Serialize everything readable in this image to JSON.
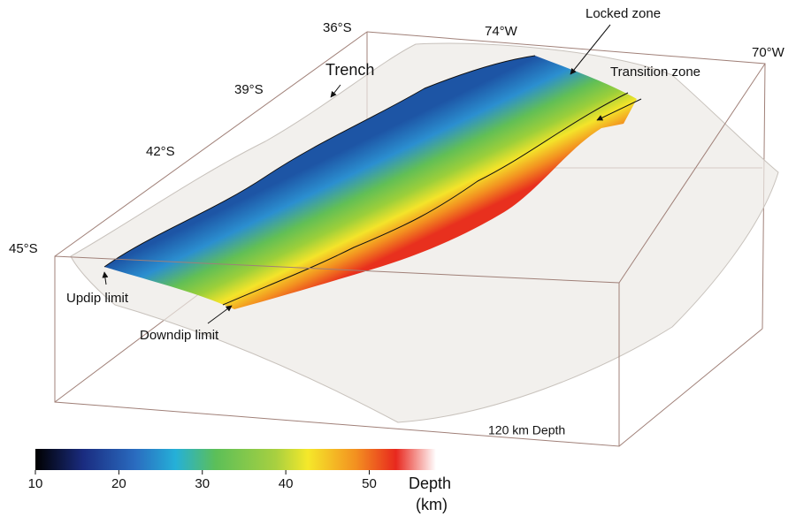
{
  "labels": {
    "lat": [
      "36°S",
      "39°S",
      "42°S",
      "45°S"
    ],
    "lon": [
      "74°W",
      "70°W"
    ],
    "trench": "Trench",
    "locked": "Locked zone",
    "transition": "Transition zone",
    "updip": "Updip limit",
    "downdip": "Downdip limit",
    "depth_box": "120 km Depth"
  },
  "colorbar": {
    "title": "Depth",
    "unit": "(km)",
    "range": [
      10,
      58
    ],
    "ticks": [
      10,
      20,
      30,
      40,
      50
    ]
  }
}
